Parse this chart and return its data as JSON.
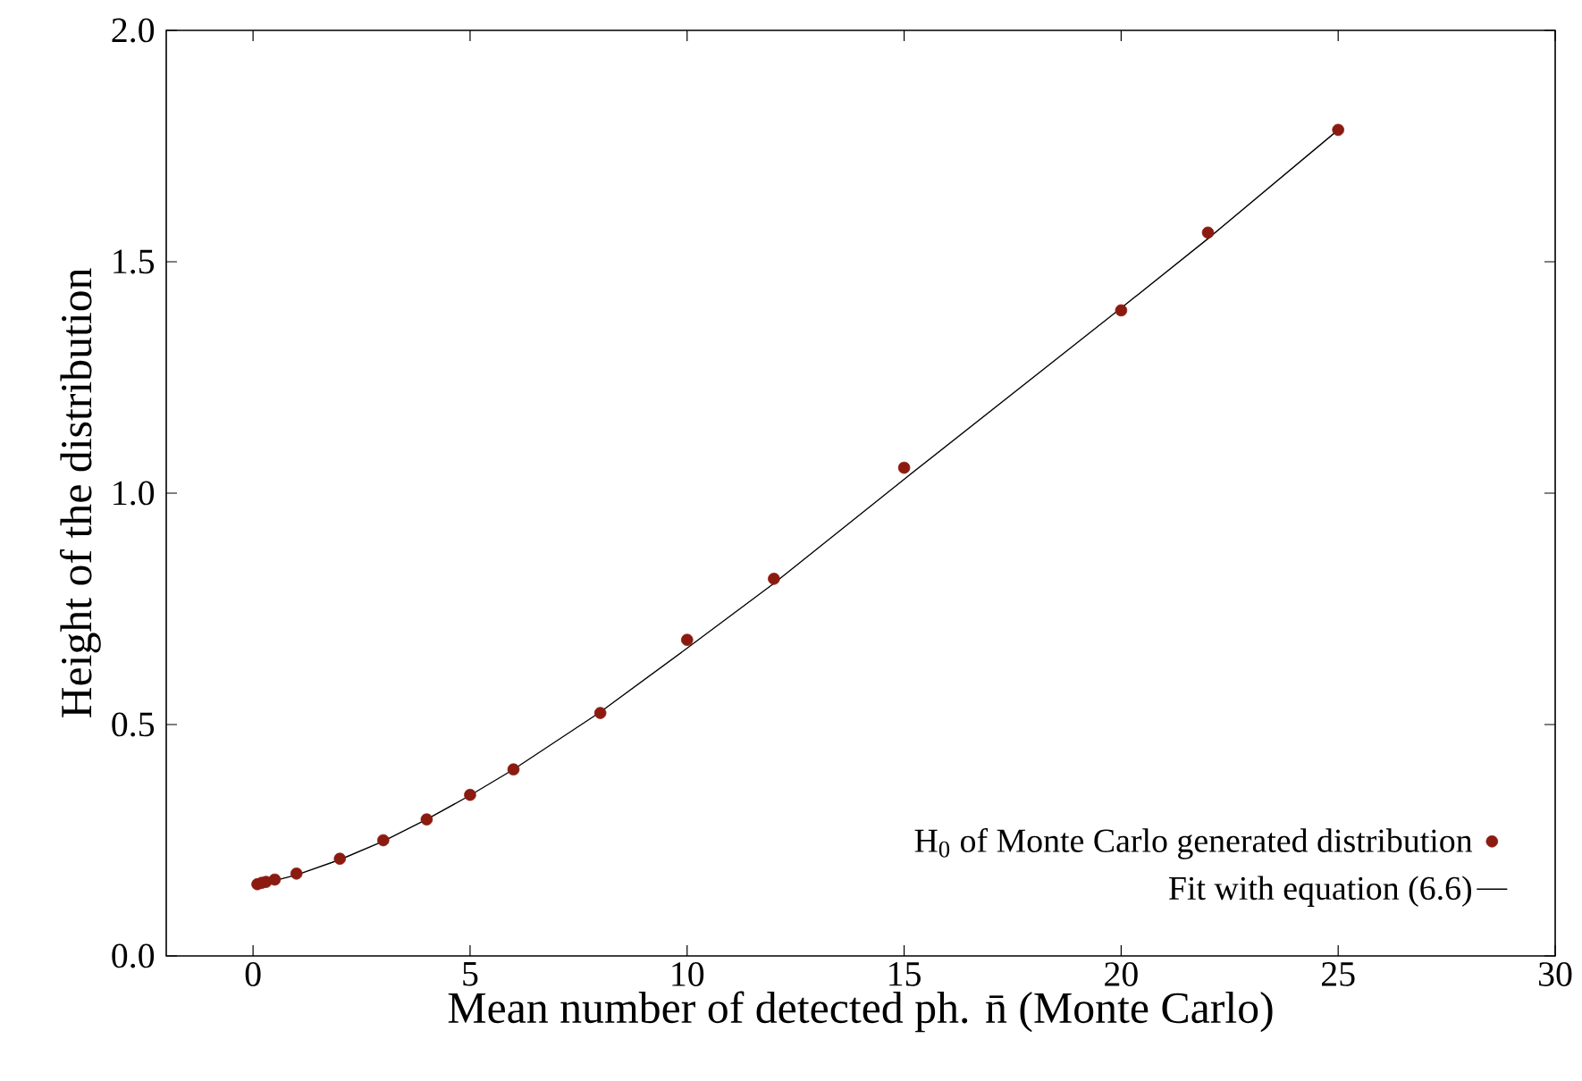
{
  "chart_data": {
    "type": "scatter",
    "xlabel": "Mean number of detected ph. n̄ (Monte Carlo)",
    "ylabel": "Height of the distribution",
    "xlim": [
      -2,
      30
    ],
    "ylim": [
      0,
      2.0
    ],
    "xticks": [
      0,
      5,
      10,
      15,
      20,
      25,
      30
    ],
    "yticks": [
      {
        "value": 0,
        "label": "0.0"
      },
      0.5,
      {
        "value": 1,
        "label": "1.0"
      },
      1.5,
      {
        "value": 2,
        "label": "2.0"
      }
    ],
    "legend": "bottom right",
    "grid": false,
    "series": [
      {
        "name": "H$_{0}$ of Monte Carlo generated distribution",
        "marker": "circle",
        "color": "#8b1a10",
        "x": [
          0.1,
          0.2,
          0.3,
          0.5,
          1,
          2,
          3,
          4,
          5,
          6,
          8,
          10,
          12,
          15,
          20,
          22,
          25
        ],
        "values": [
          0.155,
          0.158,
          0.16,
          0.165,
          0.178,
          0.21,
          0.25,
          0.295,
          0.348,
          0.403,
          0.525,
          0.683,
          0.815,
          1.055,
          1.395,
          1.563,
          1.785
        ]
      },
      {
        "name": "Fit with equation (6.6)",
        "type": "line",
        "marker": "none",
        "color": "#000000",
        "x": [
          0.3,
          1,
          2,
          3,
          4,
          5,
          6,
          8,
          10,
          12,
          15,
          20,
          22,
          25
        ],
        "values": [
          0.158,
          0.175,
          0.208,
          0.248,
          0.295,
          0.347,
          0.403,
          0.527,
          0.665,
          0.805,
          1.03,
          1.4,
          1.55,
          1.785
        ]
      }
    ]
  }
}
